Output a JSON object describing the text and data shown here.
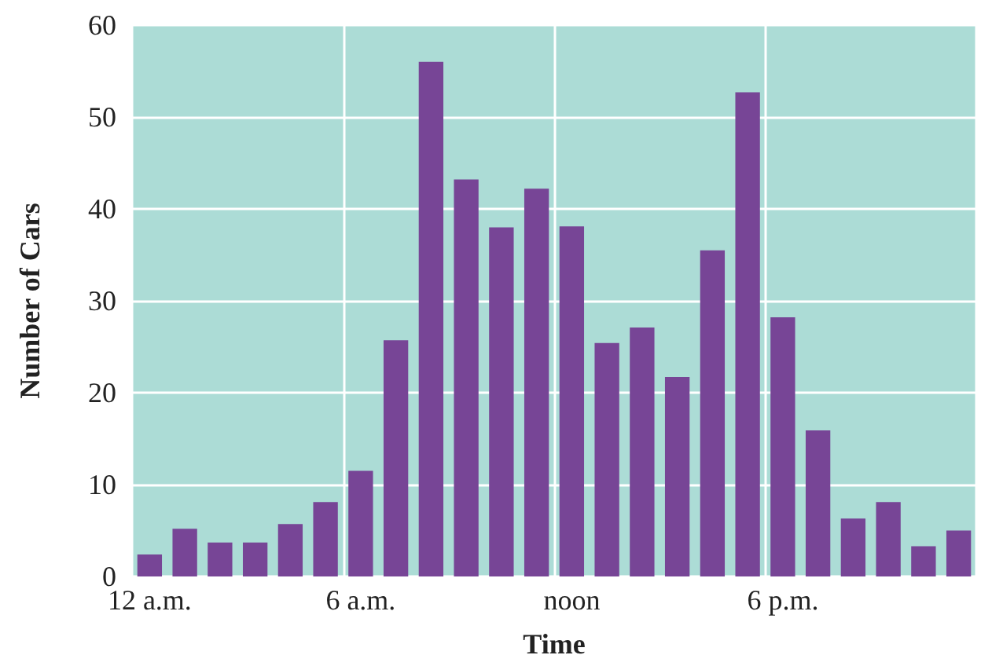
{
  "chart_data": {
    "type": "bar",
    "xlabel": "Time",
    "ylabel": "Number of Cars",
    "categories": [
      "12 a.m.",
      null,
      null,
      null,
      null,
      null,
      "6 a.m.",
      null,
      null,
      null,
      null,
      null,
      "noon",
      null,
      null,
      null,
      null,
      null,
      "6 p.m.",
      null,
      null,
      null,
      null,
      null
    ],
    "values": [
      2.4,
      5.2,
      3.7,
      3.7,
      5.7,
      8.1,
      11.5,
      25.7,
      56,
      43.2,
      38,
      42.2,
      38.1,
      25.4,
      27.1,
      21.7,
      35.5,
      52.7,
      28.2,
      15.9,
      6.3,
      8.1,
      3.3,
      5.0
    ],
    "color": "#774596",
    "ylim": [
      0,
      60
    ],
    "yticks": [
      0,
      10,
      20,
      30,
      40,
      50,
      60
    ],
    "grid": true
  }
}
